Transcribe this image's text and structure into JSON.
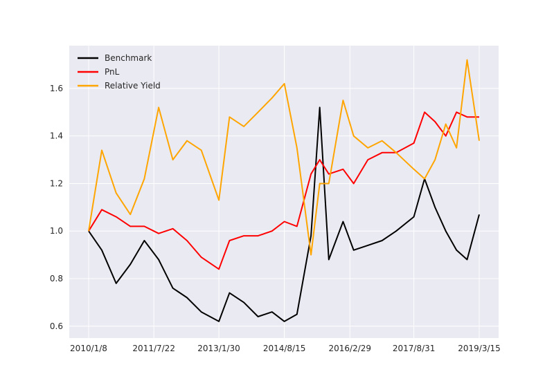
{
  "chart_data": {
    "type": "line",
    "title": "",
    "xlabel": "",
    "ylabel": "",
    "background": "#EAEAF2",
    "grid": true,
    "legend_position": "upper-left",
    "x_start": "2010/1/8",
    "x_end": "2019/3/15",
    "x_tick_labels": [
      "2010/1/8",
      "2011/7/22",
      "2013/1/30",
      "2014/8/15",
      "2016/2/29",
      "2017/8/31",
      "2019/3/15"
    ],
    "y_tick_labels": [
      "0.6",
      "0.8",
      "1.0",
      "1.2",
      "1.4",
      "1.6"
    ],
    "ylim": [
      0.55,
      1.78
    ],
    "x": [
      "2010/1/8",
      "2010/5/1",
      "2010/9/1",
      "2011/1/1",
      "2011/5/1",
      "2011/9/1",
      "2012/1/1",
      "2012/5/1",
      "2012/9/1",
      "2013/1/30",
      "2013/5/1",
      "2013/9/1",
      "2014/1/1",
      "2014/5/1",
      "2014/8/15",
      "2014/12/1",
      "2015/4/1",
      "2015/6/15",
      "2015/9/1",
      "2016/1/1",
      "2016/4/1",
      "2016/8/1",
      "2016/12/1",
      "2017/4/1",
      "2017/8/31",
      "2017/12/1",
      "2018/3/1",
      "2018/6/1",
      "2018/9/1",
      "2018/12/1",
      "2019/3/15"
    ],
    "series": [
      {
        "name": "Benchmark",
        "color": "#000000",
        "values": [
          1.0,
          0.92,
          0.78,
          0.86,
          0.96,
          0.88,
          0.76,
          0.72,
          0.66,
          0.62,
          0.74,
          0.7,
          0.64,
          0.66,
          0.62,
          0.65,
          0.98,
          1.52,
          0.88,
          1.04,
          0.92,
          0.94,
          0.96,
          1.0,
          1.06,
          1.22,
          1.1,
          1.0,
          0.92,
          0.88,
          1.07
        ]
      },
      {
        "name": "PnL",
        "color": "#FF0000",
        "values": [
          1.0,
          1.09,
          1.06,
          1.02,
          1.02,
          0.99,
          1.01,
          0.96,
          0.89,
          0.84,
          0.96,
          0.98,
          0.98,
          1.0,
          1.04,
          1.02,
          1.24,
          1.3,
          1.24,
          1.26,
          1.2,
          1.3,
          1.33,
          1.33,
          1.37,
          1.5,
          1.46,
          1.4,
          1.5,
          1.48,
          1.48
        ]
      },
      {
        "name": "Relative Yield",
        "color": "#FFA500",
        "values": [
          1.0,
          1.34,
          1.16,
          1.07,
          1.22,
          1.52,
          1.3,
          1.38,
          1.34,
          1.13,
          1.48,
          1.44,
          1.5,
          1.56,
          1.62,
          1.35,
          0.9,
          1.2,
          1.2,
          1.55,
          1.4,
          1.35,
          1.38,
          1.33,
          1.26,
          1.22,
          1.3,
          1.45,
          1.35,
          1.72,
          1.38
        ]
      }
    ]
  }
}
